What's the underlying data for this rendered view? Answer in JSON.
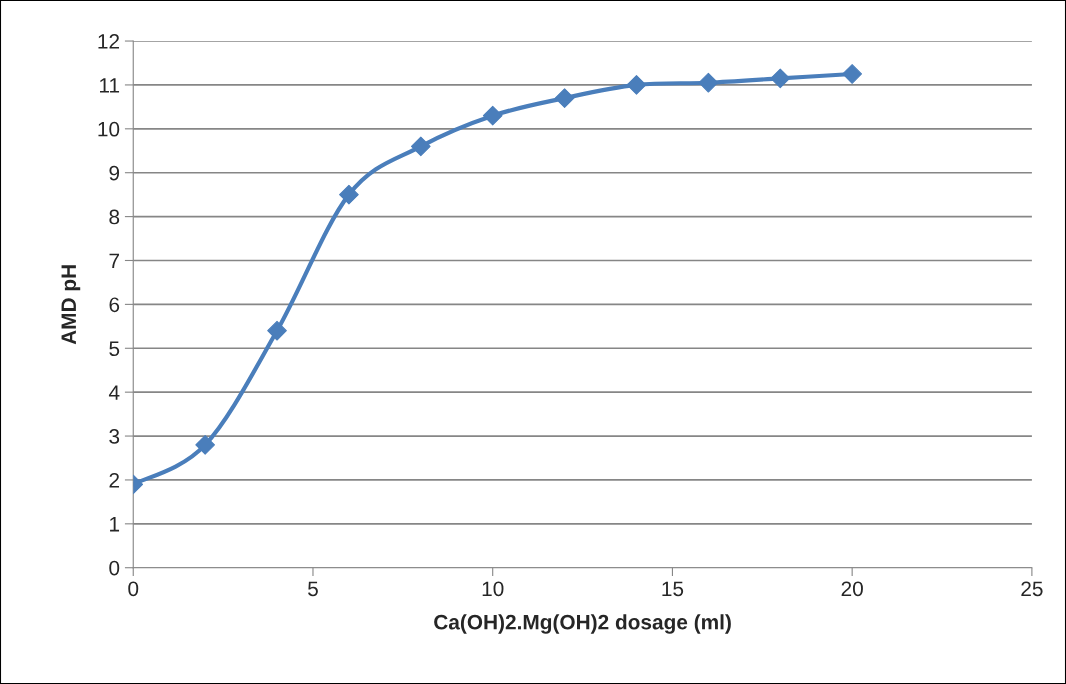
{
  "chart_data": {
    "type": "line",
    "xlabel": "Ca(OH)2.Mg(OH)2 dosage (ml)",
    "ylabel": "AMD pH",
    "x": [
      0,
      2,
      4,
      6,
      8,
      10,
      12,
      14,
      16,
      18,
      20
    ],
    "series": [
      {
        "color": "#4a7ebb",
        "values": [
          1.9,
          2.8,
          5.4,
          8.5,
          9.6,
          10.3,
          10.7,
          11.0,
          11.05,
          11.15,
          11.25
        ]
      }
    ],
    "xlim": [
      0,
      25
    ],
    "xticks": [
      0,
      5,
      10,
      15,
      20,
      25
    ],
    "ylim": [
      0,
      12
    ],
    "yticks": [
      0,
      1,
      2,
      3,
      4,
      5,
      6,
      7,
      8,
      9,
      10,
      11,
      12
    ],
    "grid": "y",
    "legend": false,
    "marker": "diamond",
    "line_style": "solid"
  }
}
